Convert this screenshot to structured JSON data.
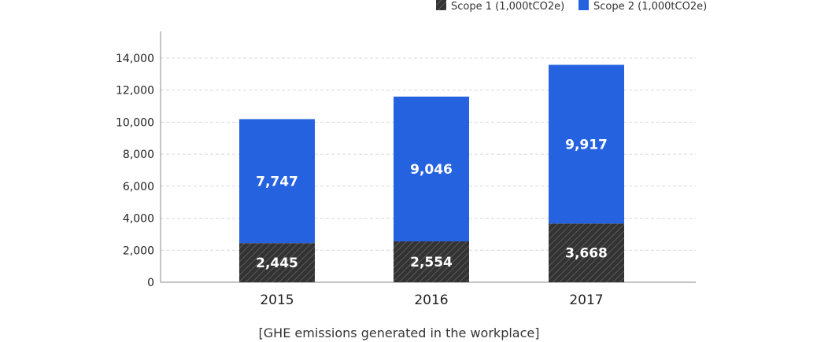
{
  "chart_data": {
    "type": "bar",
    "stacked": true,
    "categories": [
      "2015",
      "2016",
      "2017"
    ],
    "series": [
      {
        "name": "Scope 1 (1,000tCO2e)",
        "values": [
          2445,
          2554,
          3668
        ],
        "color": "#333333",
        "pattern": "diagonal-hatch"
      },
      {
        "name": "Scope 2 (1,000tCO2e)",
        "values": [
          7747,
          9046,
          9917
        ],
        "color": "#2562e0"
      }
    ],
    "value_labels": [
      [
        "2,445",
        "2,554",
        "3,668"
      ],
      [
        "7,747",
        "9,046",
        "9,917"
      ]
    ],
    "ylim": [
      0,
      14000
    ],
    "yticks": [
      0,
      2000,
      4000,
      6000,
      8000,
      10000,
      12000,
      14000
    ],
    "ytick_labels": [
      "0",
      "2,000",
      "4,000",
      "6,000",
      "8,000",
      "10,000",
      "12,000",
      "14,000"
    ],
    "grid": true,
    "legend_position": "top-right",
    "caption": "[GHE emissions generated in the workplace]"
  }
}
